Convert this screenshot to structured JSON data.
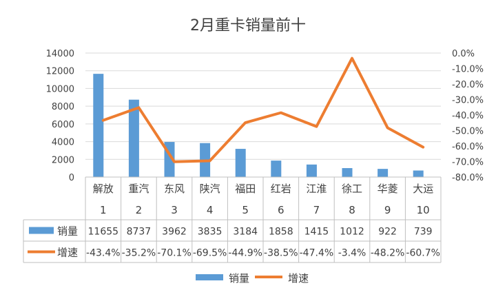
{
  "chart_data": {
    "type": "bar",
    "title": "2月重卡销量前十",
    "categories": [
      "解放",
      "重汽",
      "东风",
      "陕汽",
      "福田",
      "红岩",
      "江淮",
      "徐工",
      "华菱",
      "大运"
    ],
    "ranks": [
      "1",
      "2",
      "3",
      "4",
      "5",
      "6",
      "7",
      "8",
      "9",
      "10"
    ],
    "series": [
      {
        "name": "销量",
        "kind": "bar",
        "axis": "left",
        "color": "#5B9BD5",
        "values": [
          11655,
          8737,
          3962,
          3835,
          3184,
          1858,
          1415,
          1012,
          922,
          739
        ],
        "labels": [
          "11655",
          "8737",
          "3962",
          "3835",
          "3184",
          "1858",
          "1415",
          "1012",
          "922",
          "739"
        ]
      },
      {
        "name": "增速",
        "kind": "line",
        "axis": "right",
        "color": "#ED7D31",
        "values": [
          -43.4,
          -35.2,
          -70.1,
          -69.5,
          -44.9,
          -38.5,
          -47.4,
          -3.4,
          -48.2,
          -60.7
        ],
        "labels": [
          "-43.4%",
          "-35.2%",
          "-70.1%",
          "-69.5%",
          "-44.9%",
          "-38.5%",
          "-47.4%",
          "-3.4%",
          "-48.2%",
          "-60.7%"
        ]
      }
    ],
    "left_axis": {
      "min": 0,
      "max": 14000,
      "ticks": [
        "0",
        "2000",
        "4000",
        "6000",
        "8000",
        "10000",
        "12000",
        "14000"
      ]
    },
    "right_axis": {
      "min": -80,
      "max": 0,
      "ticks": [
        "0.0%",
        "-10.0%",
        "-20.0%",
        "-30.0%",
        "-40.0%",
        "-50.0%",
        "-60.0%",
        "-70.0%",
        "-80.0%"
      ]
    },
    "legend_position": "bottom",
    "data_table": true
  }
}
